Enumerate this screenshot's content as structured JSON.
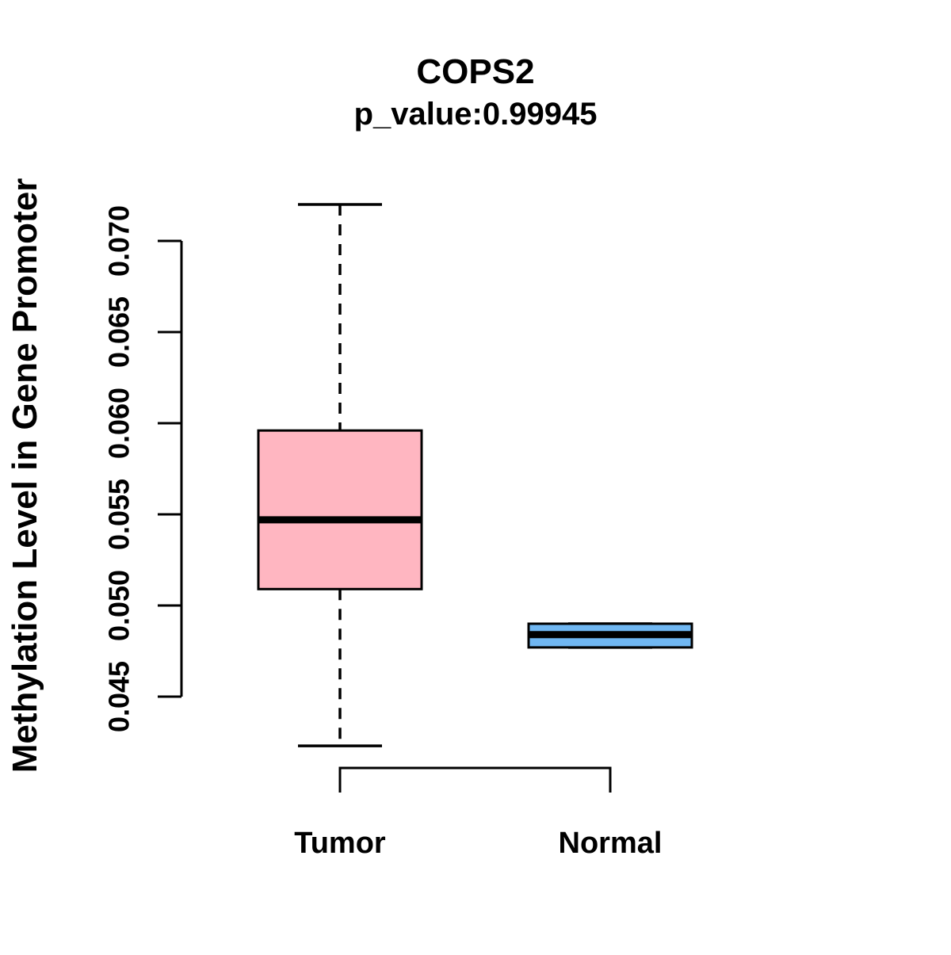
{
  "chart_data": {
    "type": "boxplot",
    "title": "COPS2",
    "subtitle": "p_value:0.99945",
    "p_value": "0.99945",
    "ylabel": "Methylation Level in Gene Promoter",
    "xlabel": "",
    "categories": [
      "Tumor",
      "Normal"
    ],
    "series": [
      {
        "name": "Tumor",
        "color": "#FFB6C1",
        "whisker_low": 0.0423,
        "q1": 0.0509,
        "median": 0.0547,
        "q3": 0.0596,
        "whisker_high": 0.072
      },
      {
        "name": "Normal",
        "color": "#70B7F2",
        "whisker_low": 0.0477,
        "q1": 0.0477,
        "median": 0.0484,
        "q3": 0.049,
        "whisker_high": 0.049
      }
    ],
    "y_ticks": [
      0.045,
      0.05,
      0.055,
      0.06,
      0.065,
      0.07
    ],
    "y_tick_labels": [
      "0.045",
      "0.050",
      "0.055",
      "0.060",
      "0.065",
      "0.070"
    ],
    "ylim": [
      0.045,
      0.07
    ],
    "grid": false,
    "legend": "none",
    "box_border_color": "#000000",
    "background_color": "#FFFFFF"
  }
}
